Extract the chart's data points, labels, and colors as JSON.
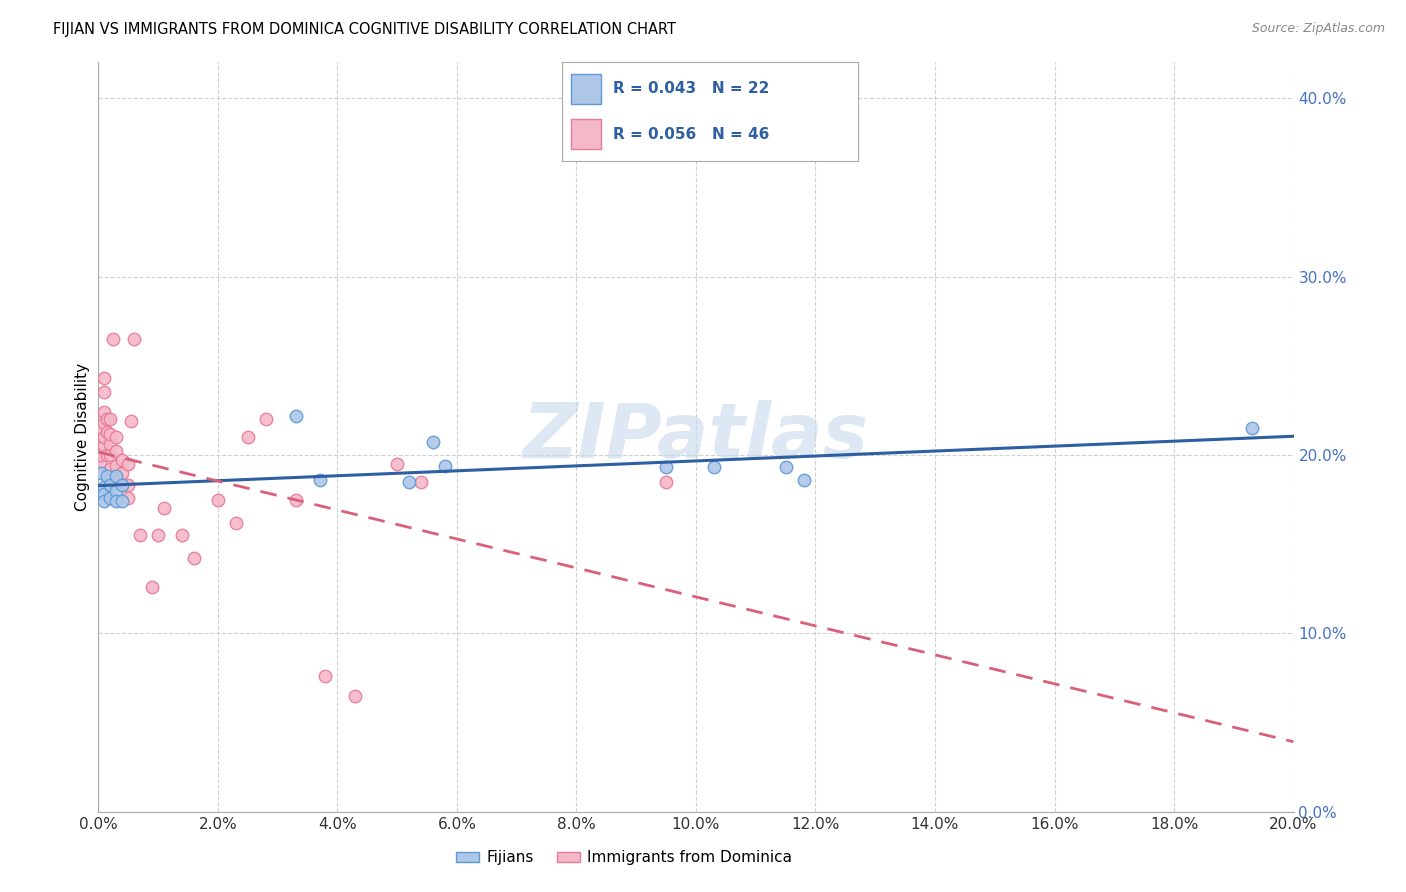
{
  "title": "FIJIAN VS IMMIGRANTS FROM DOMINICA COGNITIVE DISABILITY CORRELATION CHART",
  "source": "Source: ZipAtlas.com",
  "ylabel_label": "Cognitive Disability",
  "xlim": [
    0.0,
    0.2
  ],
  "ylim": [
    0.0,
    0.42
  ],
  "fijian_R": 0.043,
  "fijian_N": 22,
  "dominica_R": 0.056,
  "dominica_N": 46,
  "fijian_color": "#aec6e8",
  "fijian_edge_color": "#5b9bd5",
  "dominica_color": "#f4b8c8",
  "dominica_edge_color": "#e87a9a",
  "fijian_line_color": "#2e5fa3",
  "dominica_line_color": "#d9607a",
  "watermark_color": "#c8d8ee",
  "legend_color": "#2e5fa3",
  "fijian_x": [
    0.0005,
    0.001,
    0.001,
    0.001,
    0.0015,
    0.002,
    0.002,
    0.003,
    0.003,
    0.003,
    0.004,
    0.004,
    0.033,
    0.037,
    0.052,
    0.056,
    0.058,
    0.095,
    0.103,
    0.115,
    0.118,
    0.193
  ],
  "fijian_y": [
    0.19,
    0.182,
    0.178,
    0.174,
    0.188,
    0.183,
    0.176,
    0.188,
    0.18,
    0.174,
    0.183,
    0.174,
    0.222,
    0.186,
    0.185,
    0.207,
    0.194,
    0.193,
    0.193,
    0.193,
    0.186,
    0.215
  ],
  "dominica_x": [
    0.0003,
    0.0005,
    0.0005,
    0.001,
    0.001,
    0.001,
    0.001,
    0.001,
    0.001,
    0.0015,
    0.0015,
    0.0015,
    0.002,
    0.002,
    0.002,
    0.002,
    0.002,
    0.0025,
    0.003,
    0.003,
    0.003,
    0.003,
    0.004,
    0.004,
    0.004,
    0.005,
    0.005,
    0.005,
    0.0055,
    0.006,
    0.007,
    0.009,
    0.01,
    0.011,
    0.014,
    0.016,
    0.02,
    0.023,
    0.025,
    0.028,
    0.033,
    0.038,
    0.043,
    0.05,
    0.054,
    0.095
  ],
  "dominica_y": [
    0.195,
    0.2,
    0.215,
    0.205,
    0.21,
    0.218,
    0.224,
    0.235,
    0.243,
    0.2,
    0.213,
    0.22,
    0.192,
    0.2,
    0.206,
    0.212,
    0.22,
    0.265,
    0.188,
    0.194,
    0.202,
    0.21,
    0.183,
    0.19,
    0.197,
    0.176,
    0.183,
    0.195,
    0.219,
    0.265,
    0.155,
    0.126,
    0.155,
    0.17,
    0.155,
    0.142,
    0.175,
    0.162,
    0.21,
    0.22,
    0.175,
    0.076,
    0.065,
    0.195,
    0.185,
    0.185
  ],
  "background_color": "#ffffff",
  "grid_color": "#cccccc",
  "marker_size": 9
}
